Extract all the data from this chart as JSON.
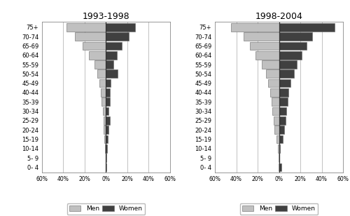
{
  "age_groups": [
    "75+",
    "70-74",
    "65-69",
    "60-64",
    "55-59",
    "50-54",
    "45-49",
    "40-44",
    "35-39",
    "30-34",
    "25-29",
    "20-24",
    "15-19",
    "10-14",
    "5- 9",
    "0- 4"
  ],
  "panel1_title": "1993-1998",
  "panel2_title": "1998-2004",
  "panel1_men": [
    37,
    29,
    22,
    16,
    11,
    8.5,
    6.5,
    5,
    4,
    3,
    2.5,
    2,
    1.5,
    0.8,
    0.2,
    0.1
  ],
  "panel1_women": [
    27,
    21,
    15,
    10,
    7,
    11,
    4.5,
    3.5,
    3.5,
    2.5,
    3.5,
    2,
    1.8,
    0.8,
    0.2,
    0.1
  ],
  "panel2_men": [
    45,
    33,
    27,
    22,
    16,
    12,
    10,
    8,
    7,
    6,
    5,
    4,
    2.5,
    1,
    0.2,
    0.1
  ],
  "panel2_women": [
    52,
    31,
    26,
    21,
    17,
    14,
    11,
    9,
    8,
    7,
    6,
    5,
    3.5,
    1,
    0.2,
    2
  ],
  "men_color": "#c0c0c0",
  "women_color": "#404040",
  "xlim": 60,
  "bar_height": 0.88,
  "figsize": [
    5.0,
    3.08
  ],
  "dpi": 100,
  "background_color": "#ffffff",
  "grid_color": "#aaaaaa",
  "grid_linewidth": 0.5
}
